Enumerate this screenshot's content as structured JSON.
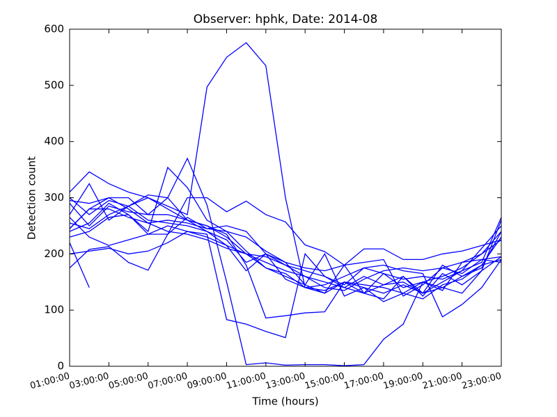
{
  "chart_data": {
    "type": "line",
    "title": "Observer: hphk, Date: 2014-08",
    "xlabel": "Time (hours)",
    "ylabel": "Detection count",
    "x": [
      1,
      2,
      3,
      4,
      5,
      6,
      7,
      8,
      9,
      10,
      11,
      12,
      13,
      14,
      15,
      16,
      17,
      18,
      19,
      20,
      21,
      22,
      23
    ],
    "xlim": [
      1,
      23
    ],
    "xticks": [
      {
        "value": 1,
        "label": "01:00:00"
      },
      {
        "value": 3,
        "label": "03:00:00"
      },
      {
        "value": 5,
        "label": "05:00:00"
      },
      {
        "value": 7,
        "label": "07:00:00"
      },
      {
        "value": 9,
        "label": "09:00:00"
      },
      {
        "value": 11,
        "label": "11:00:00"
      },
      {
        "value": 13,
        "label": "13:00:00"
      },
      {
        "value": 15,
        "label": "15:00:00"
      },
      {
        "value": 17,
        "label": "17:00:00"
      },
      {
        "value": 19,
        "label": "19:00:00"
      },
      {
        "value": 21,
        "label": "21:00:00"
      },
      {
        "value": 23,
        "label": "23:00:00"
      }
    ],
    "ylim": [
      0,
      600
    ],
    "yticks": [
      0,
      100,
      200,
      300,
      400,
      500,
      600
    ],
    "grid": false,
    "series": [
      {
        "color": "#0000ff",
        "values": [
          255,
          245,
          270,
          285,
          300,
          285,
          270,
          497,
          550,
          576,
          535,
          300,
          140,
          135,
          150,
          140,
          130,
          145,
          130,
          150,
          170,
          210,
          250
        ]
      },
      {
        "color": "#0000ff",
        "values": [
          300,
          270,
          295,
          285,
          305,
          300,
          370,
          287,
          150,
          3,
          6,
          2,
          3,
          3,
          1,
          3,
          48,
          75,
          150,
          135,
          185,
          190,
          195
        ]
      },
      {
        "color": "#0000ff",
        "values": [
          220,
          140,
          null,
          null,
          null,
          null,
          null,
          null,
          null,
          null,
          null,
          null,
          null,
          null,
          null,
          null,
          null,
          null,
          null,
          null,
          null,
          null,
          null
        ]
      },
      {
        "color": "#0000ff",
        "values": [
          265,
          230,
          215,
          225,
          235,
          250,
          240,
          235,
          83,
          75,
          62,
          51,
          200,
          160,
          140,
          130,
          165,
          140,
          150,
          160,
          175,
          200,
          225
        ]
      },
      {
        "color": "#0000ff",
        "values": [
          290,
          250,
          285,
          275,
          270,
          300,
          260,
          250,
          235,
          180,
          86,
          90,
          95,
          97,
          150,
          130,
          145,
          160,
          130,
          180,
          160,
          180,
          190
        ]
      },
      {
        "color": "#0000ff",
        "values": [
          245,
          280,
          300,
          280,
          255,
          240,
          235,
          225,
          210,
          200,
          175,
          165,
          140,
          145,
          160,
          175,
          180,
          170,
          165,
          88,
          110,
          140,
          190
        ]
      },
      {
        "color": "#0000ff",
        "values": [
          310,
          346,
          325,
          310,
          300,
          280,
          260,
          250,
          230,
          200,
          185,
          170,
          160,
          150,
          140,
          160,
          145,
          150,
          130,
          140,
          130,
          170,
          260
        ]
      },
      {
        "color": "#0000ff",
        "values": [
          240,
          255,
          290,
          270,
          240,
          354,
          318,
          260,
          240,
          205,
          175,
          160,
          145,
          130,
          150,
          145,
          140,
          130,
          150,
          140,
          160,
          175,
          240
        ]
      },
      {
        "color": "#0000ff",
        "values": [
          175,
          208,
          213,
          185,
          171,
          235,
          300,
          300,
          275,
          294,
          270,
          257,
          216,
          204,
          180,
          209,
          209,
          190,
          190,
          200,
          205,
          215,
          225
        ]
      },
      {
        "color": "#0000ff",
        "values": [
          230,
          240,
          265,
          270,
          235,
          235,
          265,
          245,
          250,
          240,
          200,
          180,
          160,
          140,
          135,
          155,
          170,
          175,
          170,
          175,
          185,
          200,
          240
        ]
      },
      {
        "color": "#0000ff",
        "values": [
          270,
          325,
          260,
          285,
          260,
          255,
          250,
          240,
          215,
          200,
          195,
          180,
          170,
          160,
          145,
          175,
          165,
          155,
          160,
          155,
          170,
          185,
          265
        ]
      },
      {
        "color": "#0000ff",
        "values": [
          295,
          290,
          300,
          300,
          270,
          270,
          260,
          240,
          225,
          185,
          200,
          185,
          175,
          170,
          180,
          185,
          190,
          125,
          145,
          175,
          165,
          190,
          185
        ]
      },
      {
        "color": "#0000ff",
        "values": [
          245,
          280,
          280,
          265,
          255,
          260,
          255,
          245,
          240,
          230,
          205,
          185,
          145,
          200,
          125,
          140,
          115,
          130,
          120,
          145,
          155,
          180,
          230
        ]
      },
      {
        "color": "#0000ff",
        "values": [
          200,
          205,
          210,
          200,
          205,
          220,
          240,
          230,
          215,
          170,
          200,
          155,
          140,
          130,
          180,
          130,
          120,
          160,
          125,
          165,
          145,
          170,
          195
        ]
      }
    ]
  }
}
